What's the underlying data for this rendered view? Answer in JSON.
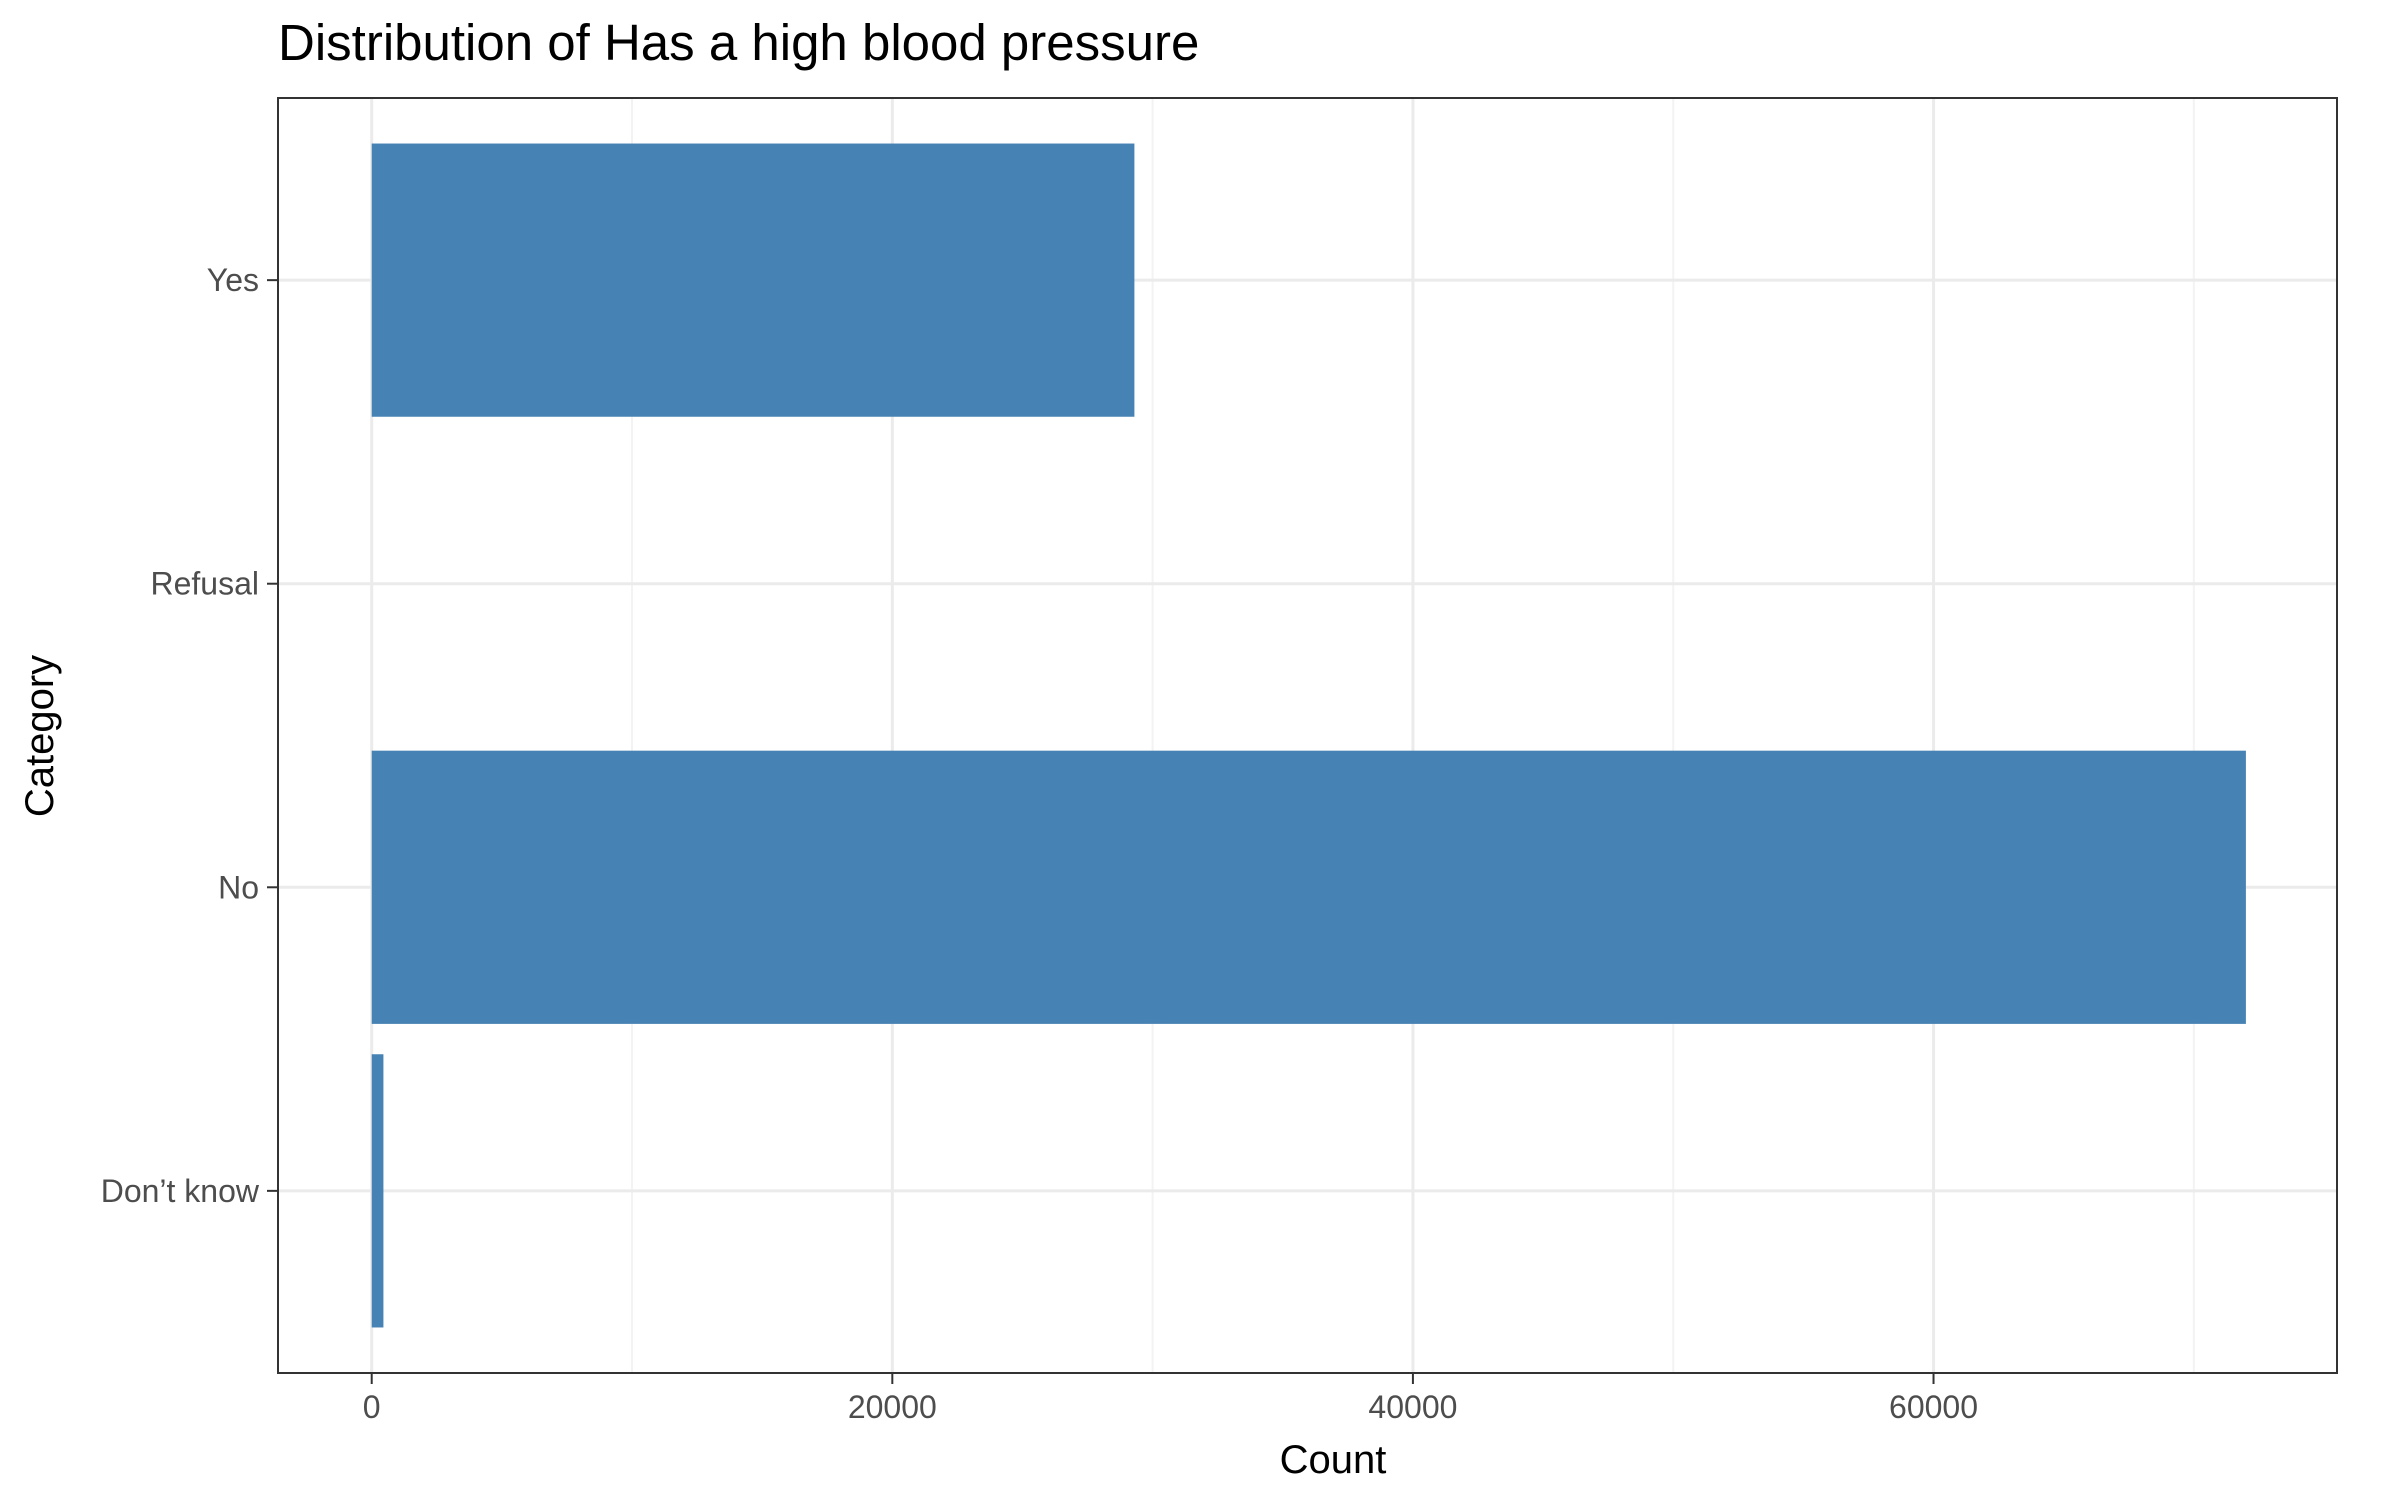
{
  "chart_data": {
    "type": "bar",
    "orientation": "horizontal",
    "title": "Distribution of Has a high blood pressure",
    "xlabel": "Count",
    "ylabel": "Category",
    "categories": [
      "Don’t know",
      "No",
      "Refusal",
      "Yes"
    ],
    "values": [
      450,
      72000,
      0,
      29300
    ],
    "xlim": [
      -3600,
      75500
    ],
    "x_ticks": [
      0,
      20000,
      40000,
      60000
    ],
    "x_tick_labels": [
      "0",
      "20000",
      "40000",
      "60000"
    ],
    "grid": true,
    "legend": "none",
    "colors": {
      "bar": "#4682b4",
      "grid_major": "#ebebeb",
      "grid_minor": "#f3f3f3",
      "panel_border": "#333333",
      "tick": "#333333",
      "tick_label": "#4d4d4d",
      "background": "#ffffff"
    }
  }
}
